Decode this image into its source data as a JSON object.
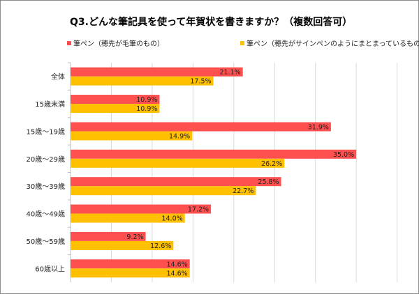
{
  "chart_data": {
    "type": "bar",
    "orientation": "horizontal",
    "title": "Q3.どんな筆記具を使って年賀状を書きますか？（複数回答可）",
    "categories": [
      "全体",
      "15歳未満",
      "15歳～19歳",
      "20歳～29歳",
      "30歳～39歳",
      "40歳～49歳",
      "50歳～59歳",
      "60歳以上"
    ],
    "series": [
      {
        "name": "筆ペン（穂先が毛筆のもの）",
        "color": "#FF5050",
        "values": [
          21.1,
          10.9,
          31.9,
          35.0,
          25.8,
          17.2,
          9.2,
          14.6
        ]
      },
      {
        "name": "筆ペン（穂先がサインペンのようにまとまっているもの）",
        "color": "#FFC000",
        "values": [
          17.5,
          10.9,
          14.9,
          26.2,
          22.7,
          14.0,
          12.6,
          14.6
        ]
      }
    ],
    "value_suffix": "%",
    "xlim": [
      0,
      40
    ],
    "grid_step": 5,
    "grid": true,
    "tick_labels_shown": false,
    "legend_position": "top"
  }
}
